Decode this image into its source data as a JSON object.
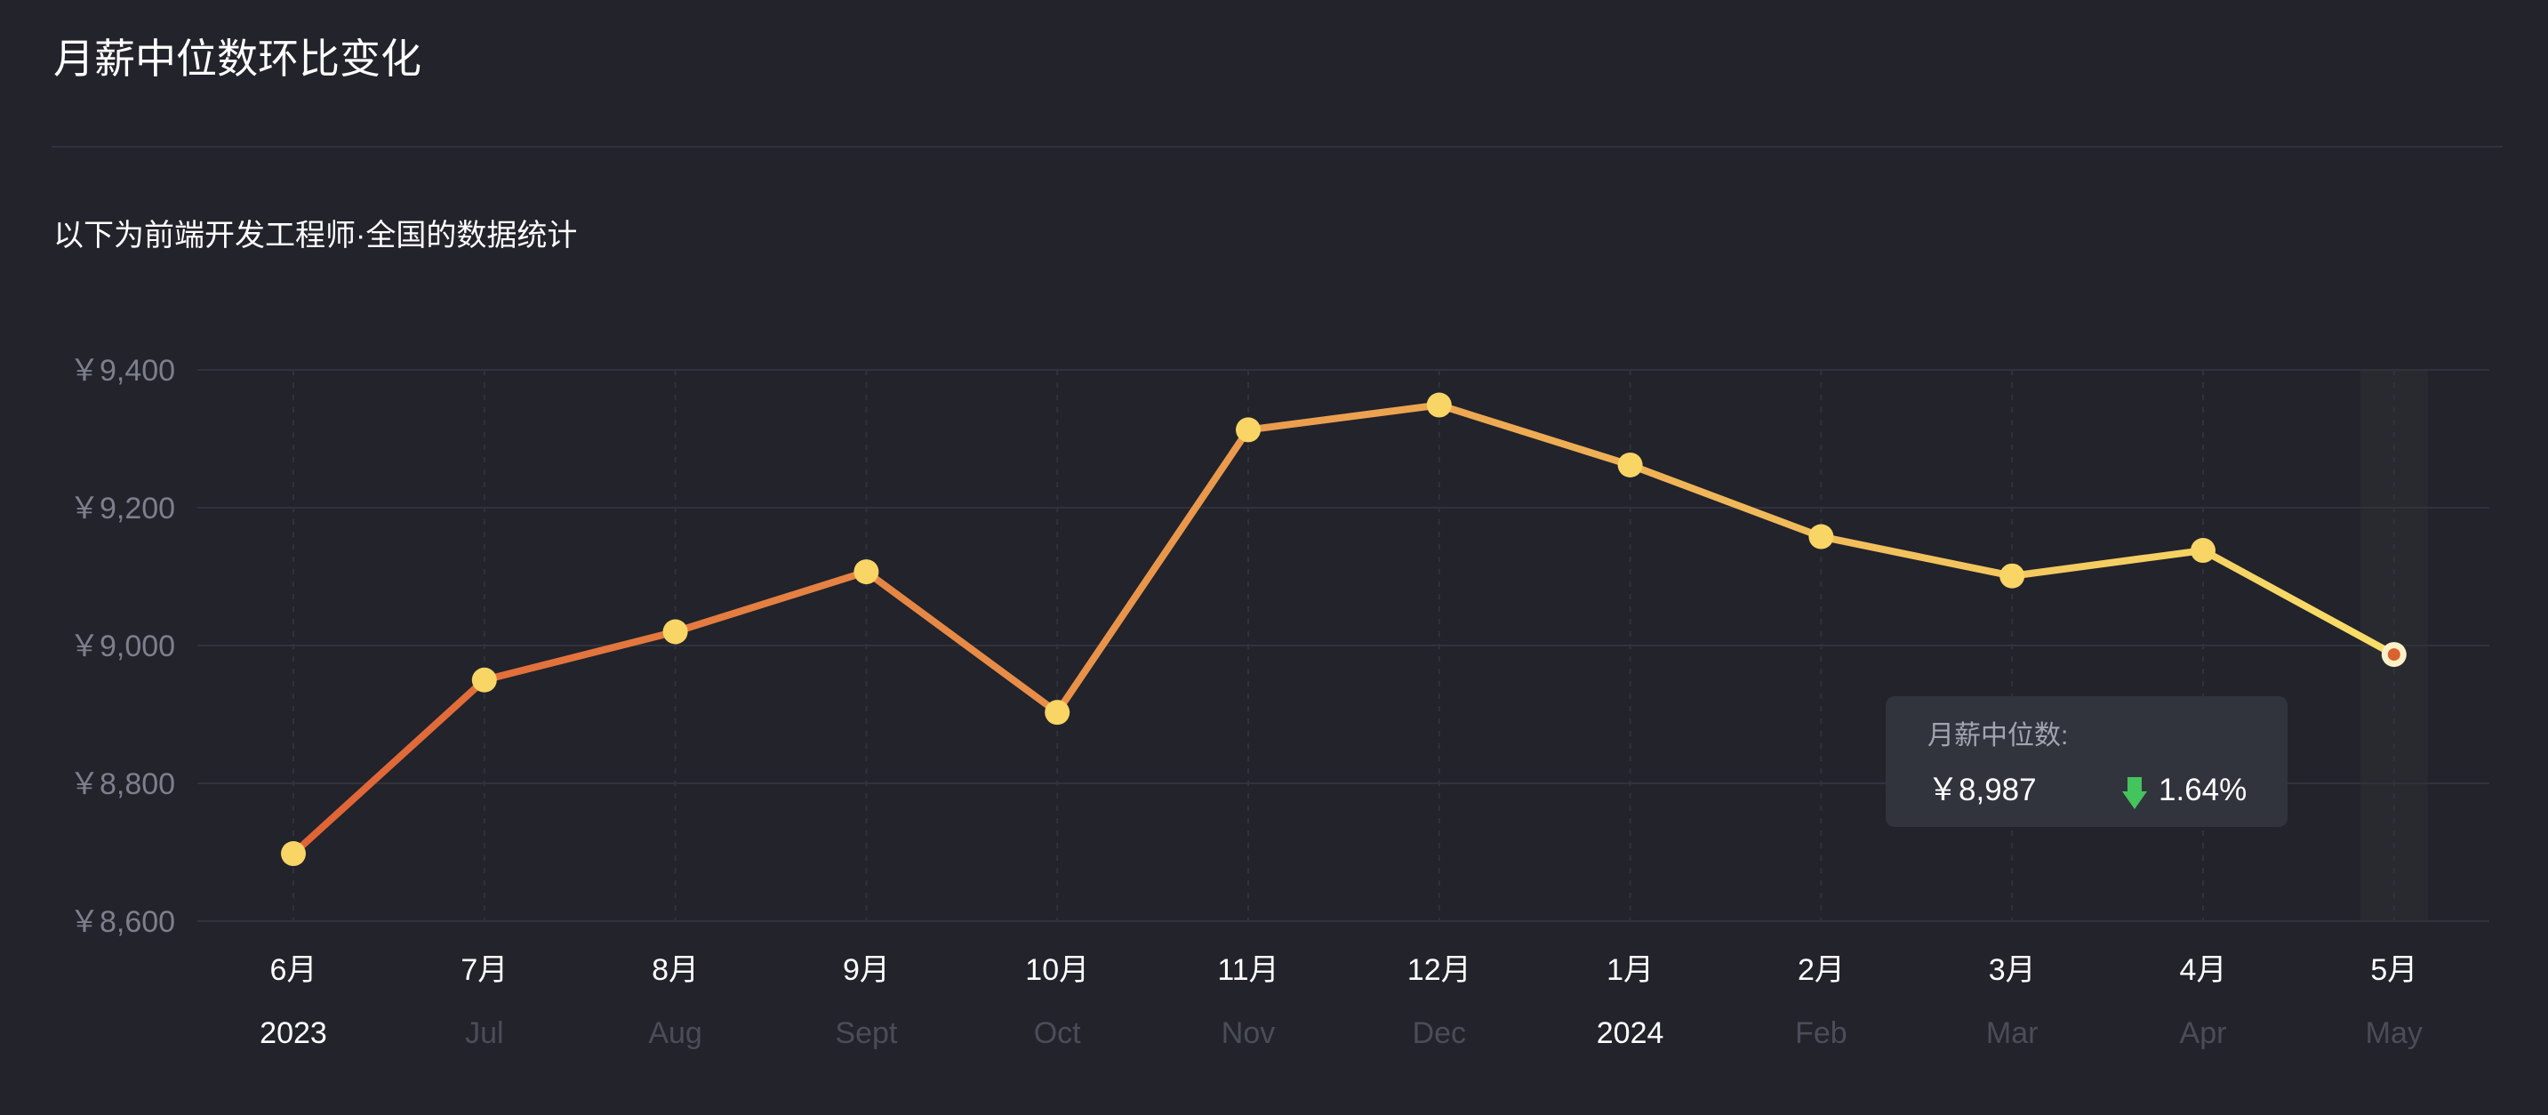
{
  "header": {
    "title": "月薪中位数环比变化",
    "subtitle": "以下为前端开发工程师·全国的数据统计"
  },
  "colors": {
    "background": "#22232b",
    "grid": "#30323c",
    "line_start": "#df6336",
    "line_end": "#f8de68",
    "point": "#f8d565",
    "highlight_point_center": "#d9622f",
    "hover_band": "#282a30",
    "tooltip_bg": "#32343d",
    "down_arrow": "#43c45c"
  },
  "chart_data": {
    "type": "line",
    "title": "月薪中位数环比变化",
    "categories": [
      "6月",
      "7月",
      "8月",
      "9月",
      "10月",
      "11月",
      "12月",
      "1月",
      "2月",
      "3月",
      "4月",
      "5月"
    ],
    "sub_labels": [
      "2023",
      "Jul",
      "Aug",
      "Sept",
      "Oct",
      "Nov",
      "Dec",
      "2024",
      "Feb",
      "Mar",
      "Apr",
      "May"
    ],
    "year_label_indices": [
      0,
      7
    ],
    "series": [
      {
        "values": [
          8698,
          8950,
          9020,
          9107,
          8903,
          9313,
          9349,
          9262,
          9158,
          9101,
          9138,
          8987
        ]
      }
    ],
    "yticks": [
      "￥8,600",
      "￥8,800",
      "￥9,000",
      "￥9,200",
      "￥9,400"
    ],
    "ylim": [
      8600,
      9400
    ],
    "grid": true,
    "highlight_index": 11
  },
  "tooltip": {
    "label": "月薪中位数:",
    "value": "￥8,987",
    "change": "1.64%",
    "direction": "down",
    "icon": "down-arrow-icon"
  }
}
